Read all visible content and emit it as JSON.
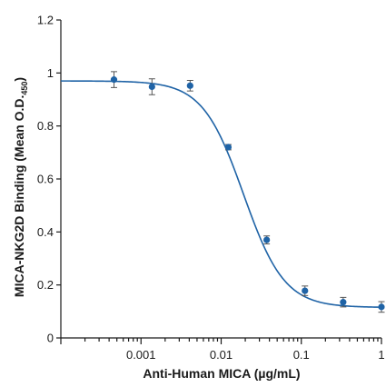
{
  "chart_data": {
    "type": "scatter",
    "title": "",
    "xlabel": "Anti-Human MICA (µg/mL)",
    "ylabel_main": "MICA-NKG2D Binding (Mean O.D.",
    "ylabel_sub": "450",
    "ylabel_close": ")",
    "x_scale": "log",
    "xlim": [
      0.0001,
      1
    ],
    "ylim": [
      0,
      1.2
    ],
    "x_tick_labels": [
      {
        "value": 0.001,
        "label": "0.001"
      },
      {
        "value": 0.01,
        "label": "0.01"
      },
      {
        "value": 0.1,
        "label": "0.1"
      },
      {
        "value": 1,
        "label": "1"
      }
    ],
    "y_ticks": [
      {
        "value": 0,
        "label": "0"
      },
      {
        "value": 0.2,
        "label": "0.2"
      },
      {
        "value": 0.4,
        "label": "0.4"
      },
      {
        "value": 0.6,
        "label": "0.6"
      },
      {
        "value": 0.8,
        "label": "0.8"
      },
      {
        "value": 1,
        "label": "1"
      },
      {
        "value": 1.2,
        "label": "1.2"
      }
    ],
    "grid": false,
    "points": [
      {
        "x": 0.00046,
        "y": 0.975,
        "err": 0.03
      },
      {
        "x": 0.00137,
        "y": 0.948,
        "err": 0.03
      },
      {
        "x": 0.0041,
        "y": 0.952,
        "err": 0.02
      },
      {
        "x": 0.0123,
        "y": 0.72,
        "err": 0.01
      },
      {
        "x": 0.037,
        "y": 0.37,
        "err": 0.015
      },
      {
        "x": 0.111,
        "y": 0.178,
        "err": 0.018
      },
      {
        "x": 0.333,
        "y": 0.135,
        "err": 0.018
      },
      {
        "x": 1.0,
        "y": 0.117,
        "err": 0.02
      }
    ],
    "fit": {
      "model": "4PL",
      "top": 0.97,
      "bottom": 0.115,
      "ec50": 0.019,
      "hill": 1.7
    },
    "color": "#1f63a6"
  }
}
